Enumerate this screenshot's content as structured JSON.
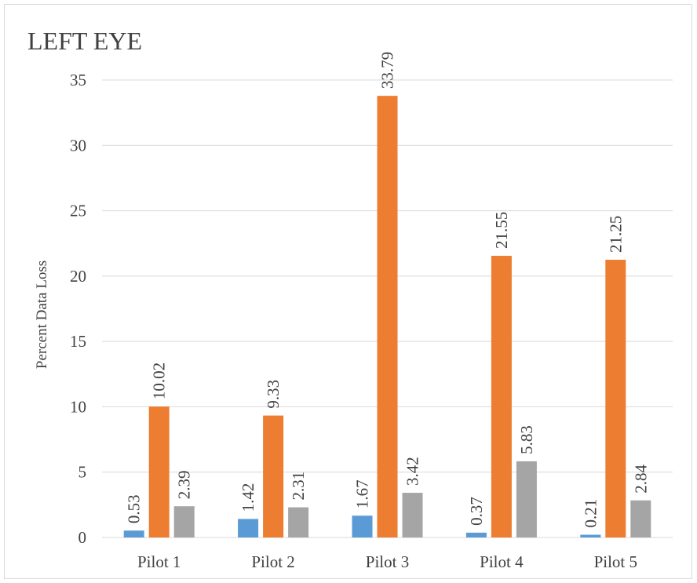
{
  "chart_data": {
    "type": "bar",
    "title": "LEFT EYE",
    "xlabel": "",
    "ylabel": "Percent Data Loss",
    "ylim": [
      0,
      35
    ],
    "ytick_step": 5,
    "yticks": [
      "0",
      "5",
      "10",
      "15",
      "20",
      "25",
      "30",
      "35"
    ],
    "grid": true,
    "legend": "none",
    "categories": [
      "Pilot 1",
      "Pilot 2",
      "Pilot 3",
      "Pilot 4",
      "Pilot 5"
    ],
    "series": [
      {
        "color": "#5b9bd5",
        "values": [
          0.53,
          1.42,
          1.67,
          0.37,
          0.21
        ],
        "labels": [
          "0.53",
          "1.42",
          "1.67",
          "0.37",
          "0.21"
        ]
      },
      {
        "color": "#ed7d31",
        "values": [
          10.02,
          9.33,
          33.79,
          21.55,
          21.25
        ],
        "labels": [
          "10.02",
          "9.33",
          "33.79",
          "21.55",
          "21.25"
        ]
      },
      {
        "color": "#a5a5a5",
        "values": [
          2.39,
          2.31,
          3.42,
          5.83,
          2.84
        ],
        "labels": [
          "2.39",
          "2.31",
          "3.42",
          "5.83",
          "2.84"
        ]
      }
    ]
  }
}
